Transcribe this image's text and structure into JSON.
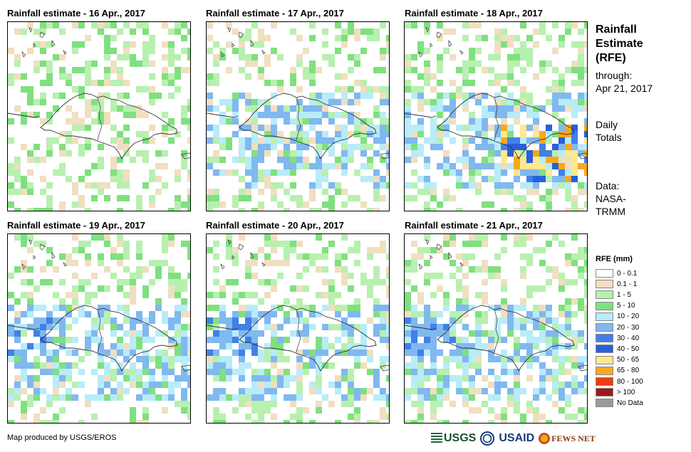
{
  "panels": [
    {
      "title": "Rainfall estimate - 16 Apr., 2017",
      "seed": 16,
      "day": 0
    },
    {
      "title": "Rainfall estimate - 17 Apr., 2017",
      "seed": 17,
      "day": 1
    },
    {
      "title": "Rainfall estimate - 18 Apr., 2017",
      "seed": 18,
      "day": 2
    },
    {
      "title": "Rainfall estimate - 19 Apr., 2017",
      "seed": 19,
      "day": 3
    },
    {
      "title": "Rainfall estimate - 20 Apr., 2017",
      "seed": 20,
      "day": 4
    },
    {
      "title": "Rainfall estimate - 21 Apr., 2017",
      "seed": 21,
      "day": 5
    }
  ],
  "side": {
    "title_line1": "Rainfall",
    "title_line2": "Estimate",
    "title_line3": "(RFE)",
    "through_label": "through:",
    "through_date": "Apr 21, 2017",
    "daily_line1": "Daily",
    "daily_line2": "Totals",
    "data_line1": "Data:",
    "data_line2": "NASA-",
    "data_line3": "TRMM"
  },
  "legend": {
    "title": "RFE (mm)",
    "items": [
      {
        "label": "0 - 0.1",
        "color": "#ffffff"
      },
      {
        "label": "0.1 - 1",
        "color": "#f0dfc0"
      },
      {
        "label": "1 - 5",
        "color": "#b8f0b0"
      },
      {
        "label": "5 - 10",
        "color": "#80e080"
      },
      {
        "label": "10 - 20",
        "color": "#b8ecf8"
      },
      {
        "label": "20 - 30",
        "color": "#80b8f0"
      },
      {
        "label": "30 - 40",
        "color": "#4080e8"
      },
      {
        "label": "40 - 50",
        "color": "#2860d8"
      },
      {
        "label": "50 - 65",
        "color": "#ffe890"
      },
      {
        "label": "65 - 80",
        "color": "#f8a820"
      },
      {
        "label": "80 - 100",
        "color": "#f03c10"
      },
      {
        "label": "> 100",
        "color": "#a01818"
      },
      {
        "label": "No Data",
        "color": "#9a9a9a"
      }
    ]
  },
  "credit": "Map produced by USGS/EROS",
  "logos": {
    "usgs": "USGS",
    "usaid": "USAID",
    "fews": "FEWS NET"
  }
}
